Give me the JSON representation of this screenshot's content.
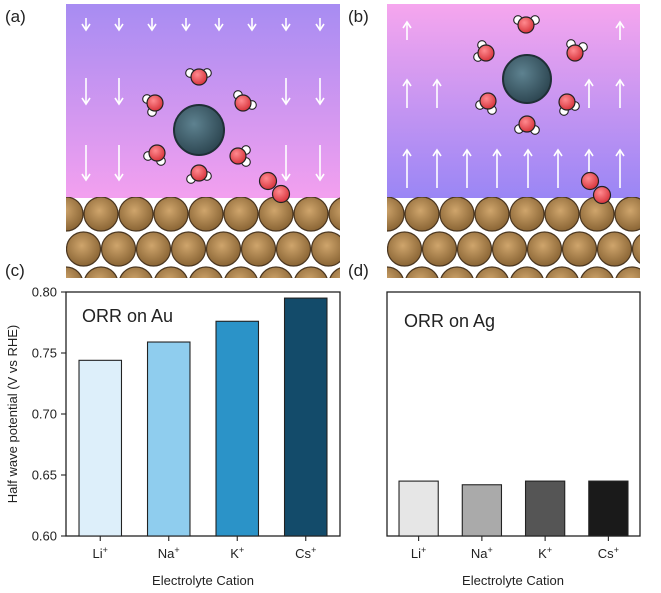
{
  "panel_labels": {
    "a": "(a)",
    "b": "(b)",
    "c": "(c)",
    "d": "(d)"
  },
  "illustrations": {
    "a": {
      "field_direction": "down",
      "background_top": "#a78cf2",
      "background_bottom": "#f3a0ef"
    },
    "b": {
      "field_direction": "up",
      "background_top": "#f6a6ee",
      "background_bottom": "#9a86f5"
    },
    "cation_color": "#3d5b66",
    "oxygen_color": "#e8484f",
    "hydrogen_color": "#ffffff",
    "surface_atom_color": "#b48a55"
  },
  "chart_data": [
    {
      "type": "bar",
      "panel": "c",
      "title": "ORR on Au",
      "ylabel": "Half wave potential (V vs RHE)",
      "xlabel": "Electrolyte Cation",
      "ylim": [
        0.6,
        0.8
      ],
      "yticks": [
        "0.60",
        "0.65",
        "0.70",
        "0.75",
        "0.80"
      ],
      "categories": [
        {
          "base": "Li",
          "sup": "+"
        },
        {
          "base": "Na",
          "sup": "+"
        },
        {
          "base": "K",
          "sup": "+"
        },
        {
          "base": "Cs",
          "sup": "+"
        }
      ],
      "values": [
        0.744,
        0.759,
        0.776,
        0.795
      ],
      "colors": [
        "#ddeffa",
        "#8fcdee",
        "#2b93c8",
        "#134b6a"
      ]
    },
    {
      "type": "bar",
      "panel": "d",
      "title": "ORR on Ag",
      "ylabel": "",
      "xlabel": "Electrolyte Cation",
      "ylim": [
        0.6,
        0.8
      ],
      "yticks": [],
      "categories": [
        {
          "base": "Li",
          "sup": "+"
        },
        {
          "base": "Na",
          "sup": "+"
        },
        {
          "base": "K",
          "sup": "+"
        },
        {
          "base": "Cs",
          "sup": "+"
        }
      ],
      "values": [
        0.645,
        0.642,
        0.645,
        0.645
      ],
      "colors": [
        "#e6e6e6",
        "#aaaaaa",
        "#555555",
        "#1a1a1a"
      ]
    }
  ]
}
